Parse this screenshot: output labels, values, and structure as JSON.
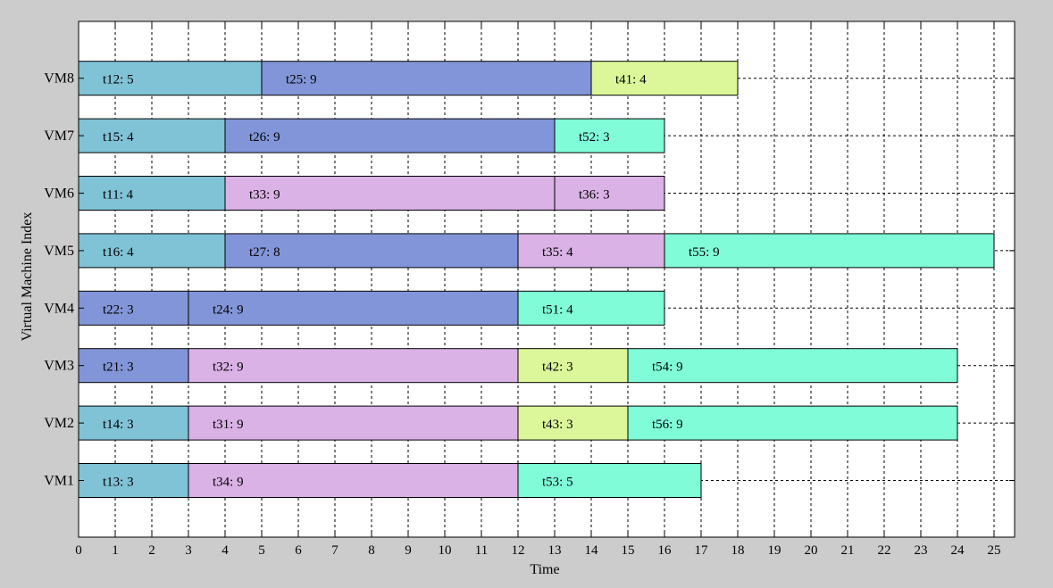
{
  "chart_data": {
    "type": "gantt",
    "title": "",
    "xlabel": "Time",
    "ylabel": "Virtual Machine Index",
    "xlim": [
      0,
      25.5
    ],
    "x_ticks": [
      0,
      1,
      2,
      3,
      4,
      5,
      6,
      7,
      8,
      9,
      10,
      11,
      12,
      13,
      14,
      15,
      16,
      17,
      18,
      19,
      20,
      21,
      22,
      23,
      24,
      25
    ],
    "y_categories": [
      "VM1",
      "VM2",
      "VM3",
      "VM4",
      "VM5",
      "VM6",
      "VM7",
      "VM8"
    ],
    "grid": true,
    "colors": {
      "c1": "#80c2d6",
      "c2": "#8295d8",
      "c3": "#dab2e6",
      "c4": "#dcf79a",
      "c5": "#80fdd8"
    },
    "rows": [
      {
        "vm": "VM1",
        "tasks": [
          {
            "label": "t13: 3",
            "start": 0,
            "duration": 3,
            "color": "c1"
          },
          {
            "label": "t34: 9",
            "start": 3,
            "duration": 9,
            "color": "c3"
          },
          {
            "label": "t53: 5",
            "start": 12,
            "duration": 5,
            "color": "c5"
          }
        ]
      },
      {
        "vm": "VM2",
        "tasks": [
          {
            "label": "t14: 3",
            "start": 0,
            "duration": 3,
            "color": "c1"
          },
          {
            "label": "t31: 9",
            "start": 3,
            "duration": 9,
            "color": "c3"
          },
          {
            "label": "t43: 3",
            "start": 12,
            "duration": 3,
            "color": "c4"
          },
          {
            "label": "t56: 9",
            "start": 15,
            "duration": 9,
            "color": "c5"
          }
        ]
      },
      {
        "vm": "VM3",
        "tasks": [
          {
            "label": "t21: 3",
            "start": 0,
            "duration": 3,
            "color": "c2"
          },
          {
            "label": "t32: 9",
            "start": 3,
            "duration": 9,
            "color": "c3"
          },
          {
            "label": "t42: 3",
            "start": 12,
            "duration": 3,
            "color": "c4"
          },
          {
            "label": "t54: 9",
            "start": 15,
            "duration": 9,
            "color": "c5"
          }
        ]
      },
      {
        "vm": "VM4",
        "tasks": [
          {
            "label": "t22: 3",
            "start": 0,
            "duration": 3,
            "color": "c2"
          },
          {
            "label": "t24: 9",
            "start": 3,
            "duration": 9,
            "color": "c2"
          },
          {
            "label": "t51: 4",
            "start": 12,
            "duration": 4,
            "color": "c5"
          }
        ]
      },
      {
        "vm": "VM5",
        "tasks": [
          {
            "label": "t16: 4",
            "start": 0,
            "duration": 4,
            "color": "c1"
          },
          {
            "label": "t27: 8",
            "start": 4,
            "duration": 8,
            "color": "c2"
          },
          {
            "label": "t35: 4",
            "start": 12,
            "duration": 4,
            "color": "c3"
          },
          {
            "label": "t55: 9",
            "start": 16,
            "duration": 9,
            "color": "c5"
          }
        ]
      },
      {
        "vm": "VM6",
        "tasks": [
          {
            "label": "t11: 4",
            "start": 0,
            "duration": 4,
            "color": "c1"
          },
          {
            "label": "t33: 9",
            "start": 4,
            "duration": 9,
            "color": "c3"
          },
          {
            "label": "t36: 3",
            "start": 13,
            "duration": 3,
            "color": "c3"
          }
        ]
      },
      {
        "vm": "VM7",
        "tasks": [
          {
            "label": "t15: 4",
            "start": 0,
            "duration": 4,
            "color": "c1"
          },
          {
            "label": "t26: 9",
            "start": 4,
            "duration": 9,
            "color": "c2"
          },
          {
            "label": "t52: 3",
            "start": 13,
            "duration": 3,
            "color": "c5"
          }
        ]
      },
      {
        "vm": "VM8",
        "tasks": [
          {
            "label": "t12: 5",
            "start": 0,
            "duration": 5,
            "color": "c1"
          },
          {
            "label": "t25: 9",
            "start": 5,
            "duration": 9,
            "color": "c2"
          },
          {
            "label": "t41: 4",
            "start": 14,
            "duration": 4,
            "color": "c4"
          }
        ]
      }
    ]
  }
}
